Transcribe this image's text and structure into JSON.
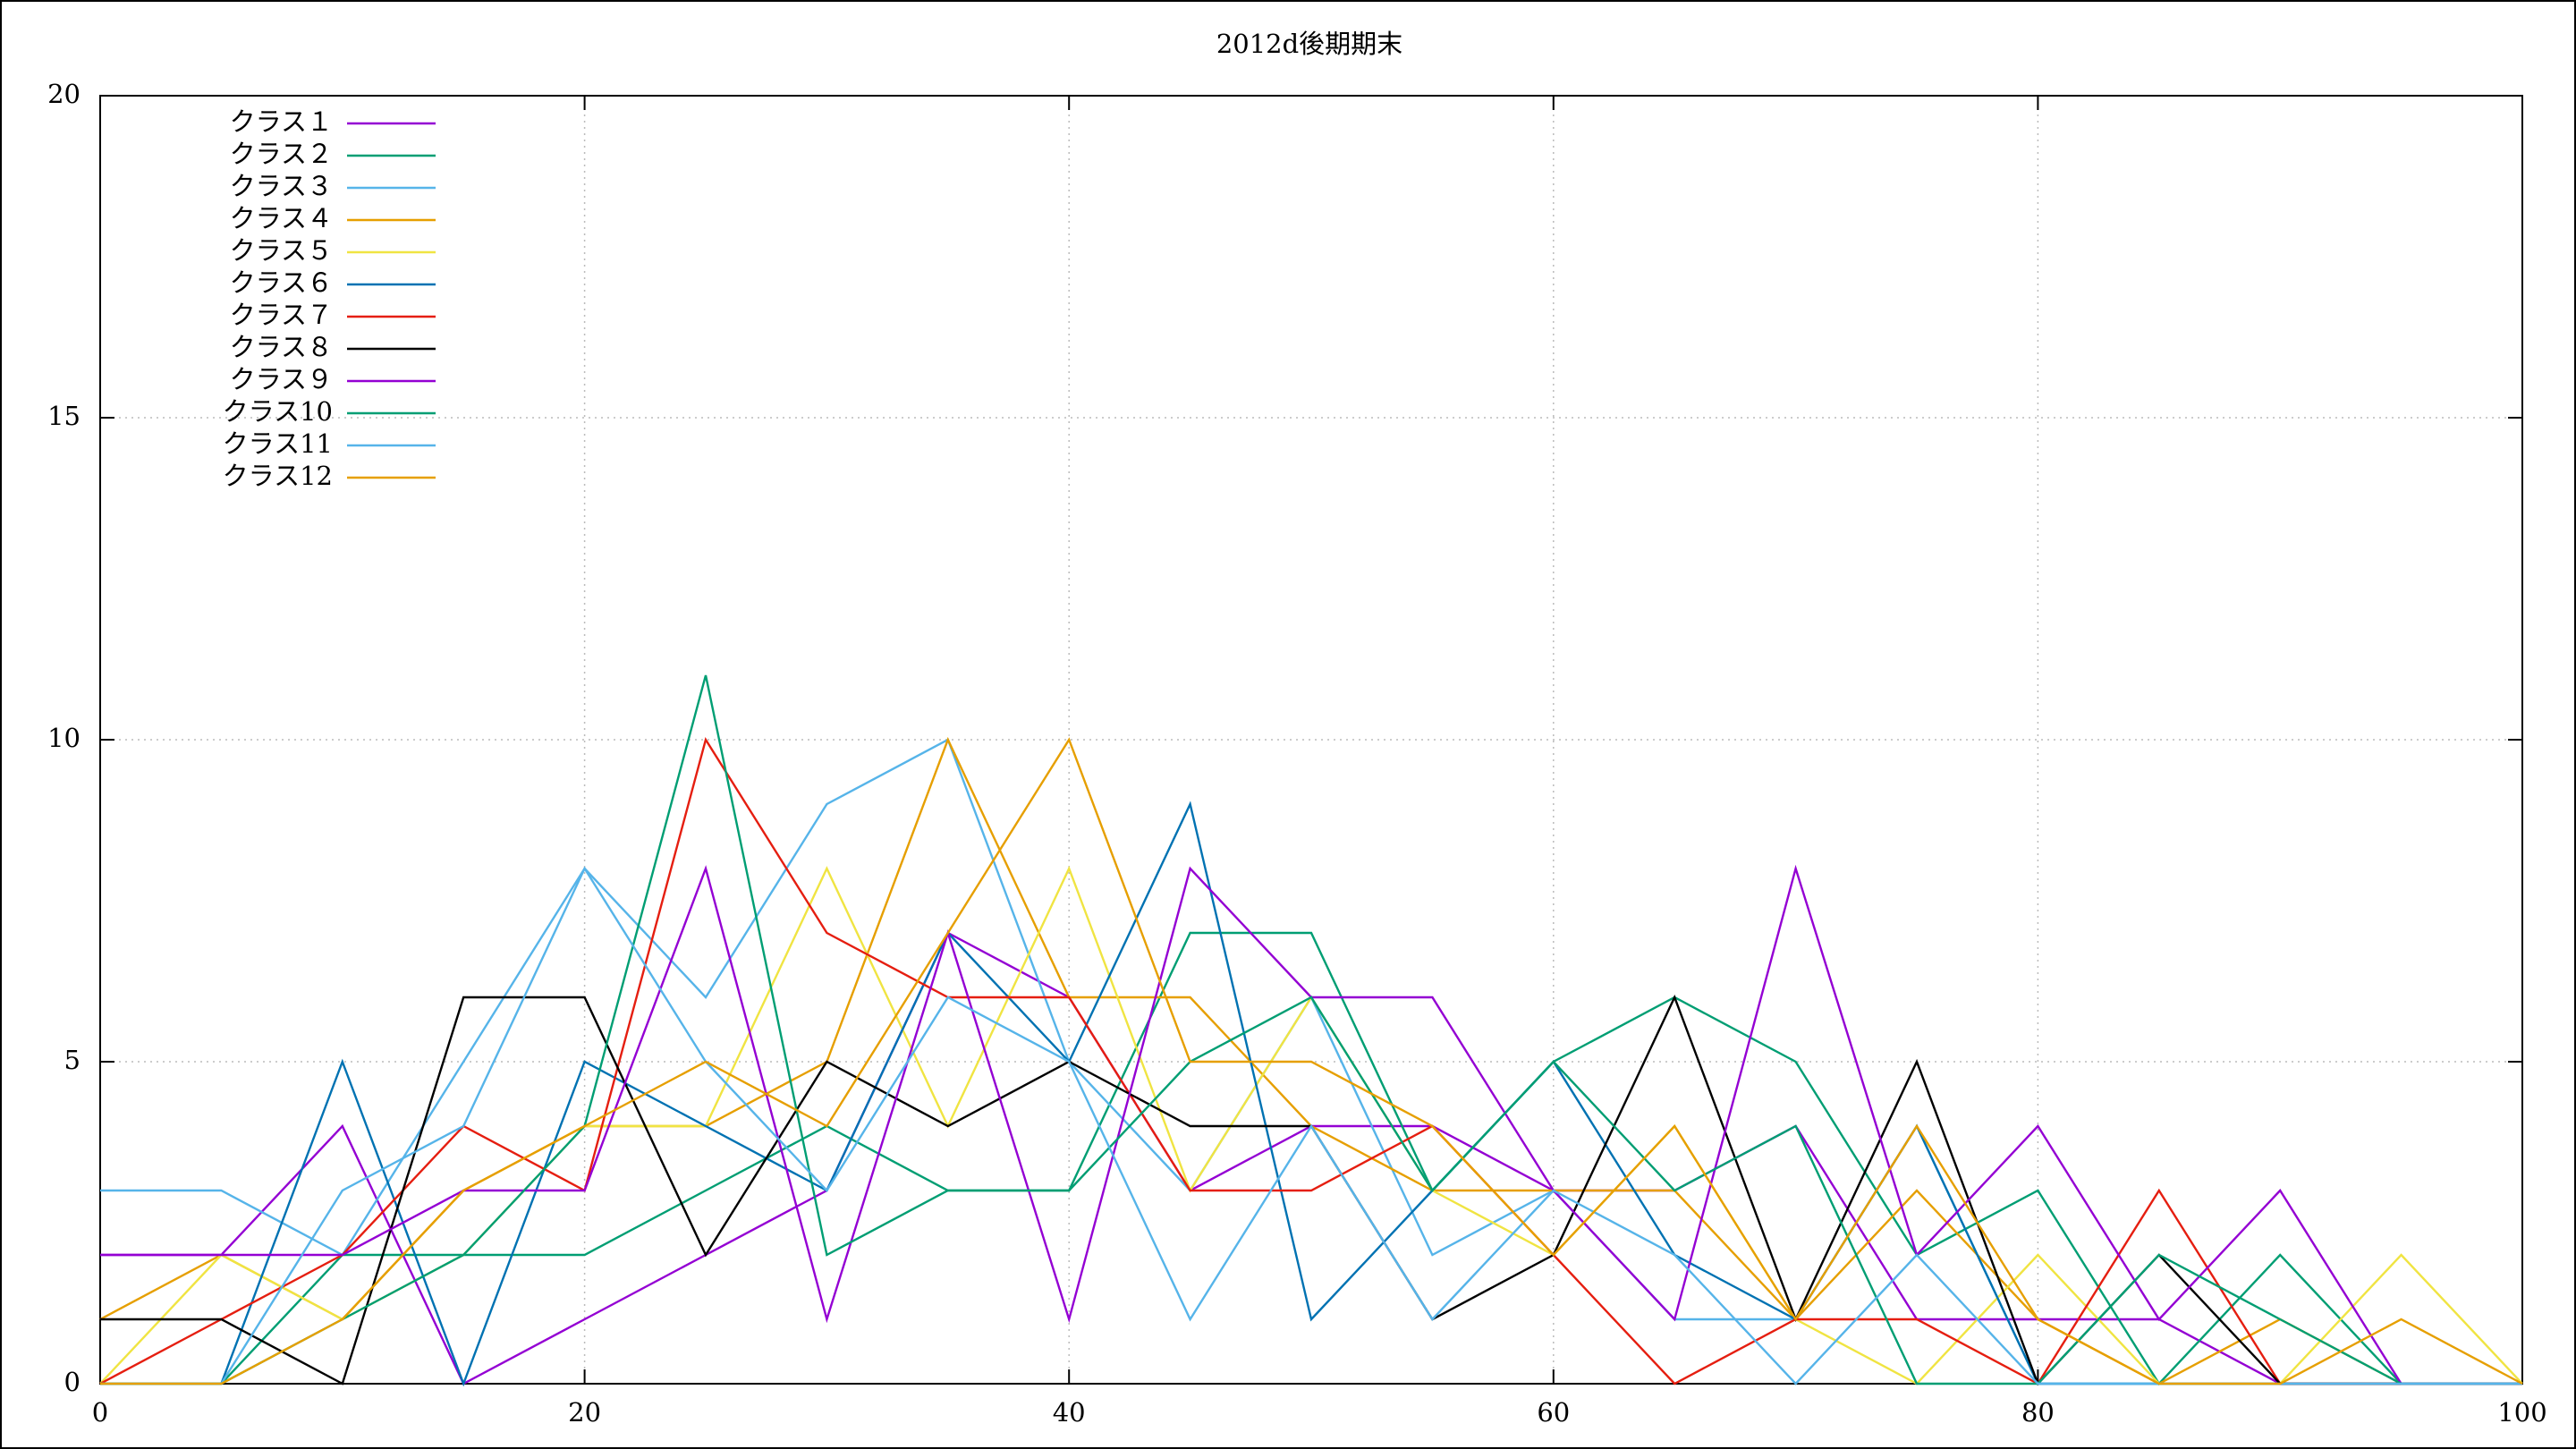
{
  "chart_data": {
    "type": "line",
    "title": "2012d後期期末",
    "x": [
      0,
      5,
      10,
      15,
      20,
      25,
      30,
      35,
      40,
      45,
      50,
      55,
      60,
      65,
      70,
      75,
      80,
      85,
      90,
      95,
      100
    ],
    "xlim": [
      0,
      100
    ],
    "xticks": [
      0,
      20,
      40,
      60,
      80,
      100
    ],
    "ylim": [
      0,
      20
    ],
    "yticks": [
      0,
      5,
      10,
      15,
      20
    ],
    "grid": true,
    "legend": "top-left",
    "series": [
      {
        "name": "クラス１",
        "color": "#9400d3",
        "values": [
          2,
          2,
          4,
          0,
          1,
          2,
          3,
          7,
          6,
          3,
          4,
          4,
          3,
          3,
          4,
          1,
          1,
          1,
          0,
          0,
          0
        ]
      },
      {
        "name": "クラス２",
        "color": "#009e73",
        "values": [
          0,
          0,
          2,
          2,
          2,
          3,
          4,
          3,
          3,
          7,
          7,
          3,
          5,
          6,
          5,
          2,
          3,
          0,
          2,
          0,
          0
        ]
      },
      {
        "name": "クラス３",
        "color": "#56b4e9",
        "values": [
          3,
          3,
          2,
          5,
          8,
          6,
          9,
          10,
          5,
          3,
          6,
          2,
          3,
          1,
          1,
          4,
          0,
          0,
          0,
          0,
          0
        ]
      },
      {
        "name": "クラス４",
        "color": "#e69f00",
        "values": [
          1,
          2,
          1,
          3,
          4,
          4,
          5,
          10,
          6,
          6,
          4,
          3,
          3,
          3,
          1,
          3,
          1,
          0,
          1,
          0,
          0
        ]
      },
      {
        "name": "クラス５",
        "color": "#f0e442",
        "values": [
          0,
          2,
          1,
          2,
          4,
          4,
          8,
          4,
          8,
          3,
          6,
          3,
          2,
          4,
          1,
          0,
          2,
          0,
          0,
          2,
          0
        ]
      },
      {
        "name": "クラス６",
        "color": "#0072b2",
        "values": [
          0,
          0,
          5,
          0,
          5,
          4,
          3,
          7,
          5,
          9,
          1,
          3,
          5,
          2,
          1,
          4,
          0,
          0,
          0,
          0,
          0
        ]
      },
      {
        "name": "クラス７",
        "color": "#e51e10",
        "values": [
          0,
          1,
          2,
          4,
          3,
          10,
          7,
          6,
          6,
          3,
          3,
          4,
          2,
          0,
          1,
          1,
          0,
          3,
          0,
          0,
          0
        ]
      },
      {
        "name": "クラス８",
        "color": "#000000",
        "values": [
          1,
          1,
          0,
          6,
          6,
          2,
          5,
          4,
          5,
          4,
          4,
          1,
          2,
          6,
          1,
          5,
          0,
          2,
          0,
          0,
          0
        ]
      },
      {
        "name": "クラス９",
        "color": "#9400d3",
        "values": [
          2,
          2,
          2,
          3,
          3,
          8,
          1,
          7,
          1,
          8,
          6,
          6,
          3,
          1,
          8,
          2,
          4,
          1,
          3,
          0,
          0
        ]
      },
      {
        "name": "クラス10",
        "color": "#009e73",
        "values": [
          0,
          0,
          1,
          2,
          4,
          11,
          2,
          3,
          3,
          5,
          6,
          3,
          5,
          3,
          4,
          0,
          0,
          2,
          1,
          0,
          0
        ]
      },
      {
        "name": "クラス11",
        "color": "#56b4e9",
        "values": [
          0,
          0,
          3,
          4,
          8,
          5,
          3,
          6,
          5,
          1,
          4,
          1,
          3,
          2,
          0,
          2,
          0,
          0,
          0,
          0,
          0
        ]
      },
      {
        "name": "クラス12",
        "color": "#e69f00",
        "values": [
          0,
          0,
          1,
          3,
          4,
          5,
          4,
          7,
          10,
          5,
          5,
          4,
          2,
          4,
          1,
          4,
          1,
          0,
          0,
          1,
          0
        ]
      }
    ]
  }
}
